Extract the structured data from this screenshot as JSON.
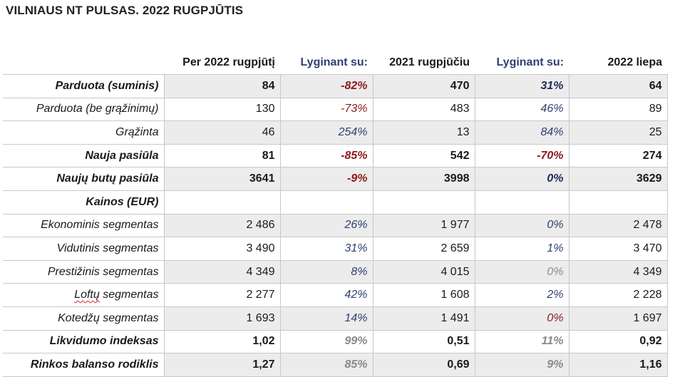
{
  "title": "VILNIAUS NT PULSAS. 2022 RUGPJŪTIS",
  "headers": [
    "",
    "Per 2022 rugpjūtį",
    "Lyginant su:",
    "2021 rugpjūčiu",
    "Lyginant su:",
    "2022 liepa"
  ],
  "rows": [
    {
      "label": "Parduota (suminis)",
      "v1": "84",
      "p1": "-82%",
      "v2": "470",
      "p2": "31%",
      "v3": "64"
    },
    {
      "label": "Parduota (be grąžinimų)",
      "v1": "130",
      "p1": "-73%",
      "v2": "483",
      "p2": "46%",
      "v3": "89"
    },
    {
      "label": "Grąžinta",
      "v1": "46",
      "p1": "254%",
      "v2": "13",
      "p2": "84%",
      "v3": "25"
    },
    {
      "label": "Nauja pasiūla",
      "v1": "81",
      "p1": "-85%",
      "v2": "542",
      "p2": "-70%",
      "v3": "274"
    },
    {
      "label": "Naujų butų pasiūla",
      "v1": "3641",
      "p1": "-9%",
      "v2": "3998",
      "p2": "0%",
      "v3": "3629"
    },
    {
      "label": "Kainos (EUR)",
      "v1": "",
      "p1": "",
      "v2": "",
      "p2": "",
      "v3": ""
    },
    {
      "label": "Ekonominis segmentas",
      "v1": "2 486",
      "p1": "26%",
      "v2": "1 977",
      "p2": "0%",
      "v3": "2 478"
    },
    {
      "label": "Vidutinis segmentas",
      "v1": "3 490",
      "p1": "31%",
      "v2": "2 659",
      "p2": "1%",
      "v3": "3 470"
    },
    {
      "label_a": "Loftų",
      "label_b": " segmentas",
      "v1": "2 277",
      "p1": "42%",
      "v2": "1 608",
      "p2": "2%",
      "v3": "2 228",
      "label_prev": "Prestižinis segmentas",
      "v1_prev": "4 349",
      "p1_prev": "8%",
      "v2_prev": "4 015",
      "p2_prev": "0%",
      "v3_prev": "4 349"
    },
    {
      "label": "Kotedžų segmentas",
      "v1": "1 693",
      "p1": "14%",
      "v2": "1 491",
      "p2": "0%",
      "v3": "1 697"
    },
    {
      "label": "Likvidumo indeksas",
      "v1": "1,02",
      "p1": "99%",
      "v2": "0,51",
      "p2": "11%",
      "v3": "0,92"
    },
    {
      "label": "Rinkos balanso rodiklis",
      "v1": "1,27",
      "p1": "85%",
      "v2": "0,69",
      "p2": "9%",
      "v3": "1,16"
    }
  ],
  "colors": {
    "negative": "#8b1a1a",
    "positive": "#2f3f73",
    "muted": "#8a8a8a",
    "shade": "#ececec"
  }
}
